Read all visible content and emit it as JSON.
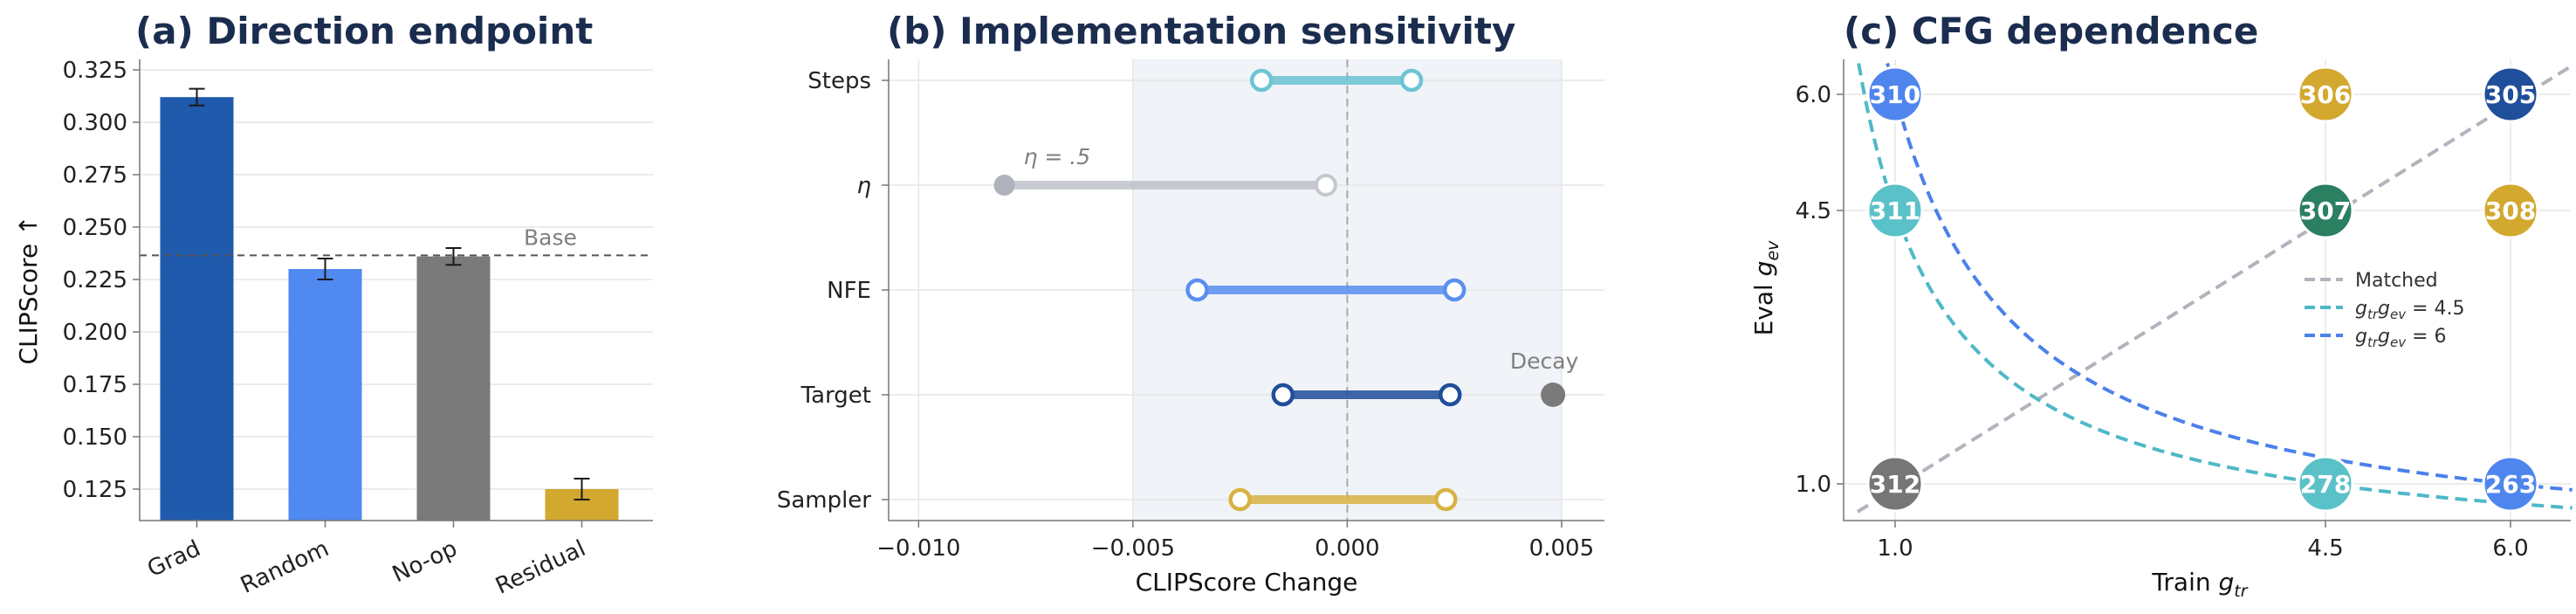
{
  "chart_data": [
    {
      "type": "bar",
      "title": "(a) Direction endpoint",
      "ylabel": "CLIPScore ↑",
      "xlabel": "",
      "categories": [
        "Grad",
        "Random",
        "No-op",
        "Residual"
      ],
      "values": [
        0.312,
        0.23,
        0.236,
        0.125
      ],
      "errors": [
        0.004,
        0.005,
        0.004,
        0.005
      ],
      "colors": [
        "#1f5aad",
        "#5089f0",
        "#7a7a7a",
        "#d2a82e"
      ],
      "ylim": [
        0.11,
        0.33
      ],
      "yticks": [
        "0.125",
        "0.150",
        "0.175",
        "0.200",
        "0.225",
        "0.250",
        "0.275",
        "0.300",
        "0.325"
      ],
      "reference_line": {
        "value": 0.2365,
        "label": "Base"
      },
      "grid": true
    },
    {
      "type": "dumbbell",
      "title": "(b) Implementation sensitivity",
      "xlabel": "CLIPScore Change",
      "xlim": [
        -0.0107,
        0.006
      ],
      "xticks": [
        "−0.010",
        "−0.005",
        "0.000",
        "0.005"
      ],
      "shaded_range": [
        -0.005,
        0.005
      ],
      "rows": [
        {
          "label": "Steps",
          "from": -0.002,
          "to": 0.0015,
          "color": "#6cc4d4"
        },
        {
          "label": "η",
          "from": -0.008,
          "to": -0.0005,
          "color": "#b8bcc4",
          "annotation": "η = .5"
        },
        {
          "label": "NFE",
          "from": -0.0035,
          "to": 0.0025,
          "color": "#5a8ff0"
        },
        {
          "label": "Target",
          "from": -0.0015,
          "to": 0.0024,
          "color": "#1f4e9a",
          "extra_point": 0.0048,
          "extra_label": "Decay"
        },
        {
          "label": "Sampler",
          "from": -0.0025,
          "to": 0.0023,
          "color": "#d8b344"
        }
      ]
    },
    {
      "type": "scatter",
      "title": "(c) CFG dependence",
      "xlabel": "Train g_tr",
      "ylabel": "Eval g_ev",
      "xticks": [
        "1.0",
        "4.5",
        "6.0"
      ],
      "yticks": [
        "1.0",
        "4.5",
        "6.0"
      ],
      "points": [
        {
          "x": "1.0",
          "y": "6.0",
          "value": "310",
          "color": "#4f86ee"
        },
        {
          "x": "4.5",
          "y": "6.0",
          "value": "306",
          "color": "#d2a82e"
        },
        {
          "x": "6.0",
          "y": "6.0",
          "value": "305",
          "color": "#1f4e9a"
        },
        {
          "x": "1.0",
          "y": "4.5",
          "value": "311",
          "color": "#5bc1c9"
        },
        {
          "x": "4.5",
          "y": "4.5",
          "value": "307",
          "color": "#2a8060"
        },
        {
          "x": "6.0",
          "y": "4.5",
          "value": "308",
          "color": "#d2a82e"
        },
        {
          "x": "1.0",
          "y": "1.0",
          "value": "312",
          "color": "#767676"
        },
        {
          "x": "4.5",
          "y": "1.0",
          "value": "278",
          "color": "#5bc1c9"
        },
        {
          "x": "6.0",
          "y": "1.0",
          "value": "263",
          "color": "#4f86ee"
        }
      ],
      "legend": {
        "placement": "center-right",
        "entries": [
          {
            "label": "Matched",
            "color": "#b0b4bc"
          },
          {
            "label_prefix": "g",
            "label_sub1": "tr",
            "label_mid": "g",
            "label_sub2": "ev",
            "label_suffix": " = 4.5",
            "color": "#4fb8c8"
          },
          {
            "label_prefix": "g",
            "label_sub1": "tr",
            "label_mid": "g",
            "label_sub2": "ev",
            "label_suffix": " = 6",
            "color": "#4a80ea"
          }
        ]
      }
    }
  ]
}
